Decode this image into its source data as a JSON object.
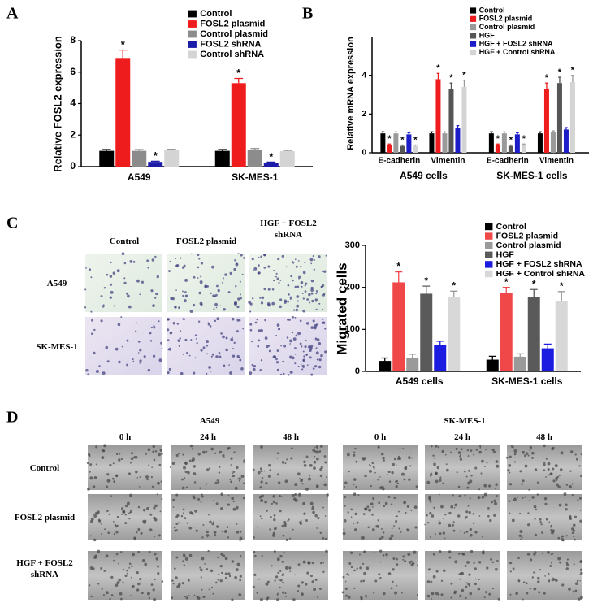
{
  "panel_labels": [
    "A",
    "B",
    "C",
    "D"
  ],
  "chart_data": [
    {
      "type": "bar",
      "ylabel": "Relative FOSL2 expression",
      "categories": [
        "A549",
        "SK-MES-1"
      ],
      "ylim": [
        0,
        8
      ],
      "yticks": [
        0,
        2,
        4,
        6,
        8
      ],
      "series": [
        {
          "name": "Control",
          "color": "#000000",
          "values": [
            1.0,
            1.0
          ],
          "errors": [
            0.08,
            0.08
          ],
          "annotations": [
            null,
            null
          ]
        },
        {
          "name": "FOSL2 plasmid",
          "color": "#ee1c1c",
          "values": [
            6.9,
            5.3
          ],
          "errors": [
            0.5,
            0.3
          ],
          "annotations": [
            "*",
            "*"
          ]
        },
        {
          "name": "Control plasmid",
          "color": "#8c8c8c",
          "values": [
            1.0,
            1.05
          ],
          "errors": [
            0.08,
            0.1
          ],
          "annotations": [
            null,
            null
          ]
        },
        {
          "name": "FOSL2 shRNA",
          "color": "#1c1ca8",
          "values": [
            0.3,
            0.25
          ],
          "errors": [
            0.04,
            0.04
          ],
          "annotations": [
            "*",
            "*"
          ]
        },
        {
          "name": "Control shRNA",
          "color": "#d4d4d4",
          "values": [
            1.05,
            0.98
          ],
          "errors": [
            0.05,
            0.05
          ],
          "annotations": [
            null,
            null
          ]
        }
      ]
    },
    {
      "type": "bar",
      "ylabel": "Relative mRNA expression",
      "categories": [
        "E-cadherin",
        "Vimentin",
        "E-cadherin",
        "Vimentin"
      ],
      "groups": [
        "A549 cells",
        "SK-MES-1 cells"
      ],
      "ylim": [
        0,
        6
      ],
      "yticks": [
        0,
        2,
        4
      ],
      "series": [
        {
          "name": "Control",
          "color": "#000000",
          "values": [
            1.0,
            1.0,
            1.0,
            1.0
          ],
          "errors": [
            0.08,
            0.08,
            0.08,
            0.08
          ],
          "annotations": [
            null,
            null,
            null,
            null
          ]
        },
        {
          "name": "FOSL2 plasmid",
          "color": "#ee1c1c",
          "values": [
            0.4,
            3.8,
            0.4,
            3.3
          ],
          "errors": [
            0.05,
            0.3,
            0.05,
            0.3
          ],
          "annotations": [
            "*",
            "*",
            "*",
            "*"
          ]
        },
        {
          "name": "Control plasmid",
          "color": "#9a9a9a",
          "values": [
            1.0,
            1.0,
            1.0,
            1.05
          ],
          "errors": [
            0.08,
            0.08,
            0.08,
            0.08
          ],
          "annotations": [
            null,
            null,
            null,
            null
          ]
        },
        {
          "name": "HGF",
          "color": "#555555",
          "values": [
            0.35,
            3.3,
            0.35,
            3.6
          ],
          "errors": [
            0.05,
            0.3,
            0.05,
            0.3
          ],
          "annotations": [
            "*",
            "*",
            "*",
            "*"
          ]
        },
        {
          "name": "HGF + FOSL2 shRNA",
          "color": "#1c1cc8",
          "values": [
            0.95,
            1.3,
            0.95,
            1.2
          ],
          "errors": [
            0.08,
            0.1,
            0.08,
            0.1
          ],
          "annotations": [
            null,
            null,
            null,
            null
          ]
        },
        {
          "name": "HGF + Control shRNA",
          "color": "#d4d4d4",
          "values": [
            0.35,
            3.4,
            0.4,
            3.65
          ],
          "errors": [
            0.05,
            0.35,
            0.05,
            0.35
          ],
          "annotations": [
            "*",
            "*",
            "*",
            "*"
          ]
        }
      ]
    },
    {
      "type": "bar",
      "ylabel": "Migrated cells",
      "categories": [
        "A549 cells",
        "SK-MES-1 cells"
      ],
      "ylim": [
        0,
        300
      ],
      "yticks": [
        0,
        100,
        200,
        300
      ],
      "series": [
        {
          "name": "Control",
          "color": "#000000",
          "values": [
            25,
            28
          ],
          "errors": [
            7,
            8
          ],
          "annotations": [
            null,
            null
          ]
        },
        {
          "name": "FOSL2 plasmid",
          "color": "#f04848",
          "values": [
            212,
            186
          ],
          "errors": [
            25,
            14
          ],
          "annotations": [
            "*",
            "*"
          ]
        },
        {
          "name": "Control plasmid",
          "color": "#9a9a9a",
          "values": [
            33,
            35
          ],
          "errors": [
            8,
            7
          ],
          "annotations": [
            null,
            null
          ]
        },
        {
          "name": "HGF",
          "color": "#5a5a5a",
          "values": [
            185,
            178
          ],
          "errors": [
            18,
            17
          ],
          "annotations": [
            "*",
            "*"
          ]
        },
        {
          "name": "HGF + FOSL2 shRNA",
          "color": "#1c1ce0",
          "values": [
            62,
            55
          ],
          "errors": [
            10,
            10
          ],
          "annotations": [
            null,
            null
          ]
        },
        {
          "name": "HGF + Control shRNA",
          "color": "#d8d8d8",
          "values": [
            177,
            168
          ],
          "errors": [
            14,
            22
          ],
          "annotations": [
            "*",
            "*"
          ]
        }
      ]
    }
  ],
  "migration_images": {
    "columns": [
      "Control",
      "FOSL2 plasmid",
      "HGF + FOSL2 shRNA"
    ],
    "rows": [
      "A549",
      "SK-MES-1"
    ]
  },
  "wound_healing": {
    "groups": [
      "A549",
      "SK-MES-1"
    ],
    "times": [
      "0 h",
      "24 h",
      "48 h"
    ],
    "rows": [
      "Control",
      "FOSL2 plasmid",
      "HGF + FOSL2 shRNA"
    ]
  }
}
